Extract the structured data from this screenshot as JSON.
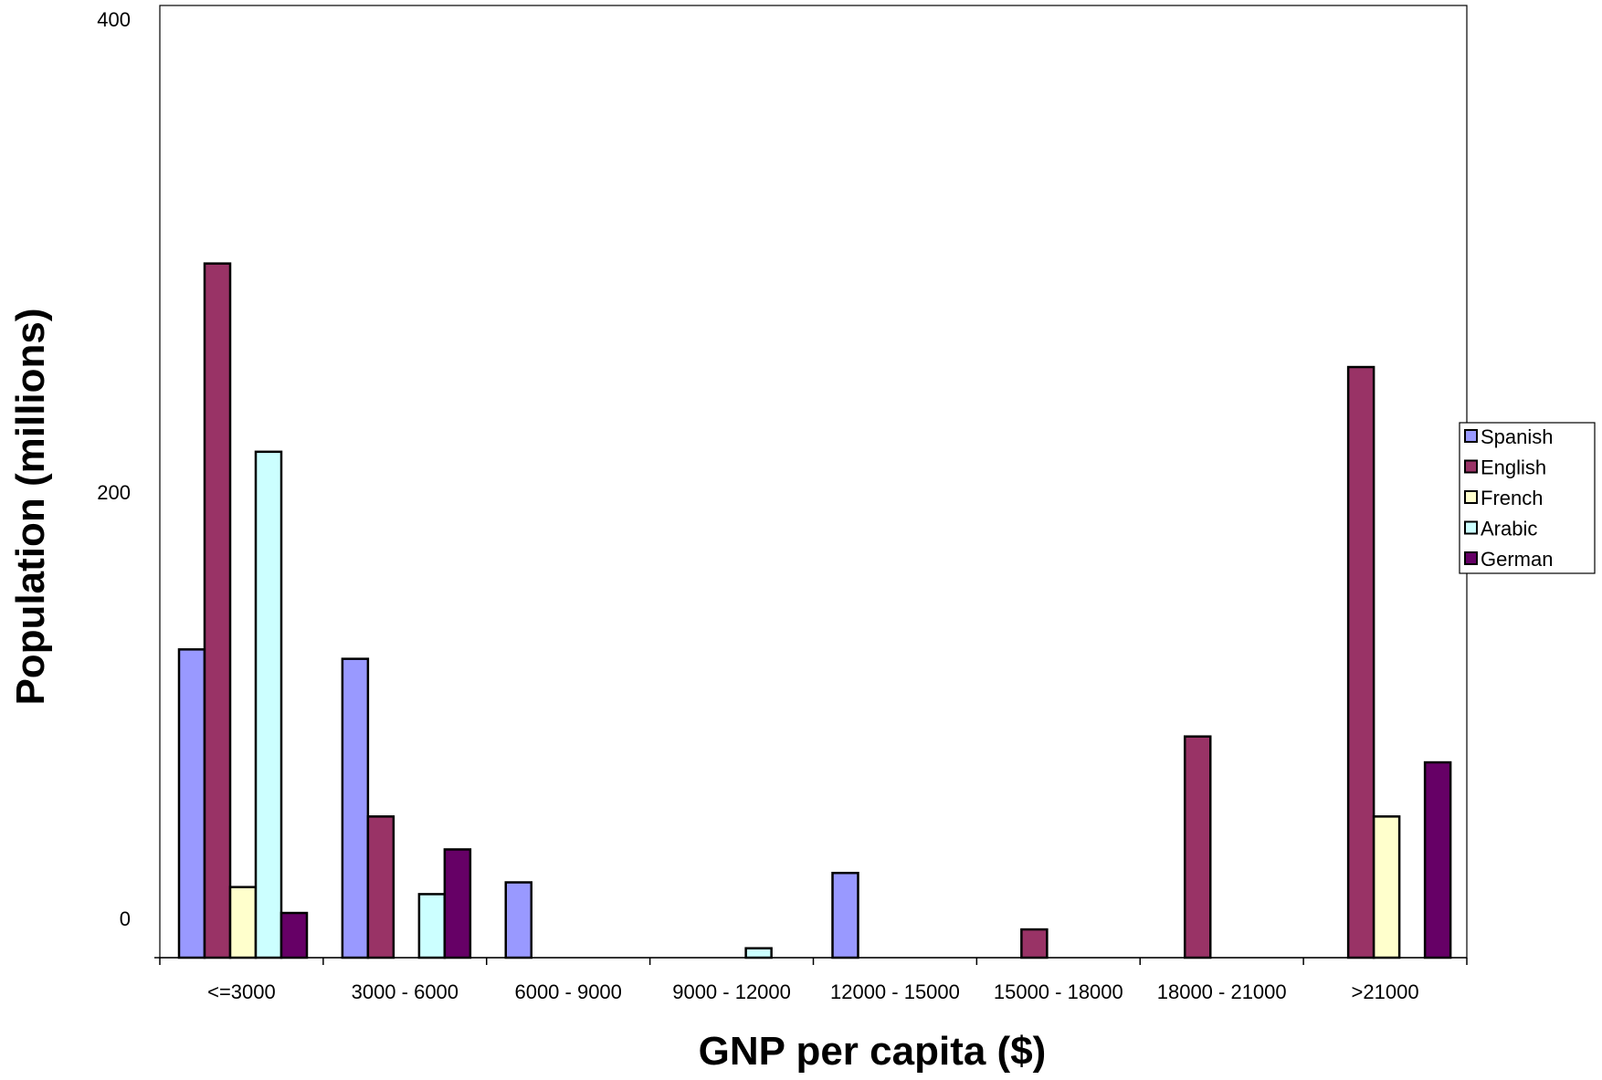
{
  "chart_data": {
    "type": "bar",
    "title": "",
    "xlabel": "GNP per capita ($)",
    "ylabel": "Population (millions)",
    "ylim": [
      0,
      400
    ],
    "yticks": [
      0,
      200,
      400
    ],
    "categories": [
      "<=3000",
      "3000 - 6000",
      "6000 - 9000",
      "9000 - 12000",
      "12000 - 15000",
      "15000 - 18000",
      "18000 - 21000",
      ">21000"
    ],
    "series": [
      {
        "name": "Spanish",
        "color": "#9999ff",
        "values": [
          131,
          127,
          32,
          0,
          36,
          0,
          0,
          0
        ]
      },
      {
        "name": "English",
        "color": "#993366",
        "values": [
          295,
          60,
          0,
          0,
          0,
          12,
          94,
          251
        ]
      },
      {
        "name": "French",
        "color": "#ffffcc",
        "values": [
          30,
          0,
          0,
          0,
          0,
          0,
          0,
          60
        ]
      },
      {
        "name": "Arabic",
        "color": "#ccffff",
        "values": [
          215,
          27,
          0,
          4,
          0,
          0,
          0,
          0
        ]
      },
      {
        "name": "German",
        "color": "#660066",
        "values": [
          19,
          46,
          0,
          0,
          0,
          0,
          0,
          83
        ]
      }
    ],
    "grid": false,
    "legend": "right"
  }
}
